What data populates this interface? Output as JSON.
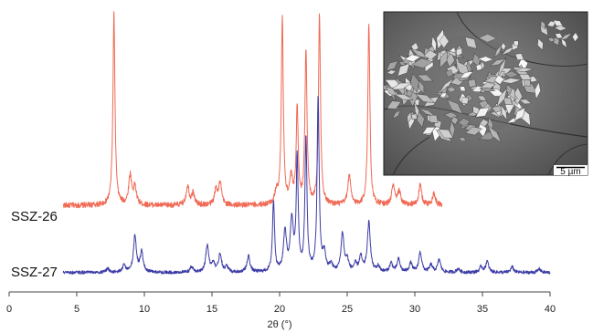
{
  "chart_data": {
    "type": "line",
    "title": "",
    "xlabel": "2θ (°)",
    "ylabel": "",
    "xlim": [
      0,
      40
    ],
    "xticks": [
      0,
      5,
      10,
      15,
      20,
      25,
      30,
      35,
      40
    ],
    "xtick_labels": [
      "0",
      "5",
      "10",
      "15",
      "20",
      "25",
      "30",
      "35",
      "40"
    ],
    "grid": false,
    "legend": "inline labels at left",
    "y_units": "relative intensity (offset, not shown)",
    "series": [
      {
        "name": "SSZ-26",
        "color": "#f06a55",
        "x_range": [
          4.0,
          32.0
        ],
        "baseline": 0.11,
        "peaks": [
          {
            "x": 7.75,
            "y": 1.0
          },
          {
            "x": 8.95,
            "y": 0.15
          },
          {
            "x": 9.3,
            "y": 0.09
          },
          {
            "x": 13.2,
            "y": 0.1
          },
          {
            "x": 13.6,
            "y": 0.06
          },
          {
            "x": 15.3,
            "y": 0.08
          },
          {
            "x": 15.6,
            "y": 0.11
          },
          {
            "x": 19.75,
            "y": 0.06
          },
          {
            "x": 20.2,
            "y": 0.96
          },
          {
            "x": 20.85,
            "y": 0.13
          },
          {
            "x": 21.3,
            "y": 0.5
          },
          {
            "x": 21.95,
            "y": 0.8
          },
          {
            "x": 22.95,
            "y": 0.98
          },
          {
            "x": 25.15,
            "y": 0.15
          },
          {
            "x": 26.6,
            "y": 0.94
          },
          {
            "x": 28.4,
            "y": 0.1
          },
          {
            "x": 28.85,
            "y": 0.07
          },
          {
            "x": 30.4,
            "y": 0.1
          },
          {
            "x": 31.4,
            "y": 0.06
          }
        ]
      },
      {
        "name": "SSZ-27",
        "color": "#3c3ca6",
        "x_range": [
          4.0,
          40.0
        ],
        "baseline": 0.01,
        "peaks": [
          {
            "x": 7.3,
            "y": 0.02
          },
          {
            "x": 8.5,
            "y": 0.04
          },
          {
            "x": 9.3,
            "y": 0.2
          },
          {
            "x": 9.8,
            "y": 0.11
          },
          {
            "x": 13.5,
            "y": 0.03
          },
          {
            "x": 14.65,
            "y": 0.15
          },
          {
            "x": 15.1,
            "y": 0.05
          },
          {
            "x": 15.6,
            "y": 0.1
          },
          {
            "x": 16.1,
            "y": 0.03
          },
          {
            "x": 17.7,
            "y": 0.09
          },
          {
            "x": 19.55,
            "y": 0.39
          },
          {
            "x": 20.4,
            "y": 0.22
          },
          {
            "x": 20.9,
            "y": 0.28
          },
          {
            "x": 21.3,
            "y": 0.61
          },
          {
            "x": 21.95,
            "y": 0.72
          },
          {
            "x": 22.85,
            "y": 0.95
          },
          {
            "x": 23.3,
            "y": 0.1
          },
          {
            "x": 23.8,
            "y": 0.04
          },
          {
            "x": 24.65,
            "y": 0.21
          },
          {
            "x": 25.0,
            "y": 0.06
          },
          {
            "x": 25.6,
            "y": 0.04
          },
          {
            "x": 26.0,
            "y": 0.08
          },
          {
            "x": 26.6,
            "y": 0.27
          },
          {
            "x": 27.3,
            "y": 0.03
          },
          {
            "x": 28.25,
            "y": 0.05
          },
          {
            "x": 28.8,
            "y": 0.07
          },
          {
            "x": 29.7,
            "y": 0.05
          },
          {
            "x": 30.4,
            "y": 0.11
          },
          {
            "x": 31.2,
            "y": 0.04
          },
          {
            "x": 31.8,
            "y": 0.07
          },
          {
            "x": 33.2,
            "y": 0.02
          },
          {
            "x": 34.9,
            "y": 0.03
          },
          {
            "x": 35.35,
            "y": 0.06
          },
          {
            "x": 37.2,
            "y": 0.03
          },
          {
            "x": 39.2,
            "y": 0.02
          }
        ]
      }
    ]
  },
  "inset": {
    "subject": "SEM micrograph of bladed crystal aggregates",
    "scale_bar_label": "5 µm"
  }
}
